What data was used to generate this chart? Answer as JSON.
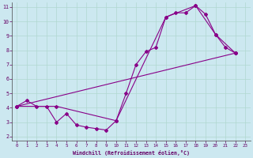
{
  "xlabel": "Windchill (Refroidissement éolien,°C)",
  "xlim": [
    -0.5,
    23.5
  ],
  "ylim": [
    1.7,
    11.3
  ],
  "xticks": [
    0,
    1,
    2,
    3,
    4,
    5,
    6,
    7,
    8,
    9,
    10,
    11,
    12,
    13,
    14,
    15,
    16,
    17,
    18,
    19,
    20,
    21,
    22,
    23
  ],
  "yticks": [
    2,
    3,
    4,
    5,
    6,
    7,
    8,
    9,
    10,
    11
  ],
  "bg_color": "#cce8f0",
  "line_color": "#880088",
  "line1_x": [
    0,
    1,
    2,
    3,
    4,
    5,
    6,
    7,
    8,
    9,
    10,
    11,
    12,
    13,
    14,
    15,
    16,
    17,
    18,
    19,
    20,
    21,
    22
  ],
  "line1_y": [
    4.1,
    4.5,
    4.1,
    4.1,
    3.0,
    3.6,
    2.8,
    2.65,
    2.55,
    2.45,
    3.1,
    5.0,
    7.0,
    7.9,
    8.2,
    10.3,
    10.6,
    10.6,
    11.1,
    10.5,
    9.1,
    8.2,
    7.8
  ],
  "line2_x": [
    0,
    4,
    10,
    15,
    18,
    20,
    22
  ],
  "line2_y": [
    4.1,
    4.1,
    3.1,
    10.3,
    11.1,
    9.1,
    7.8
  ],
  "line3_x": [
    0,
    22
  ],
  "line3_y": [
    4.1,
    7.8
  ]
}
